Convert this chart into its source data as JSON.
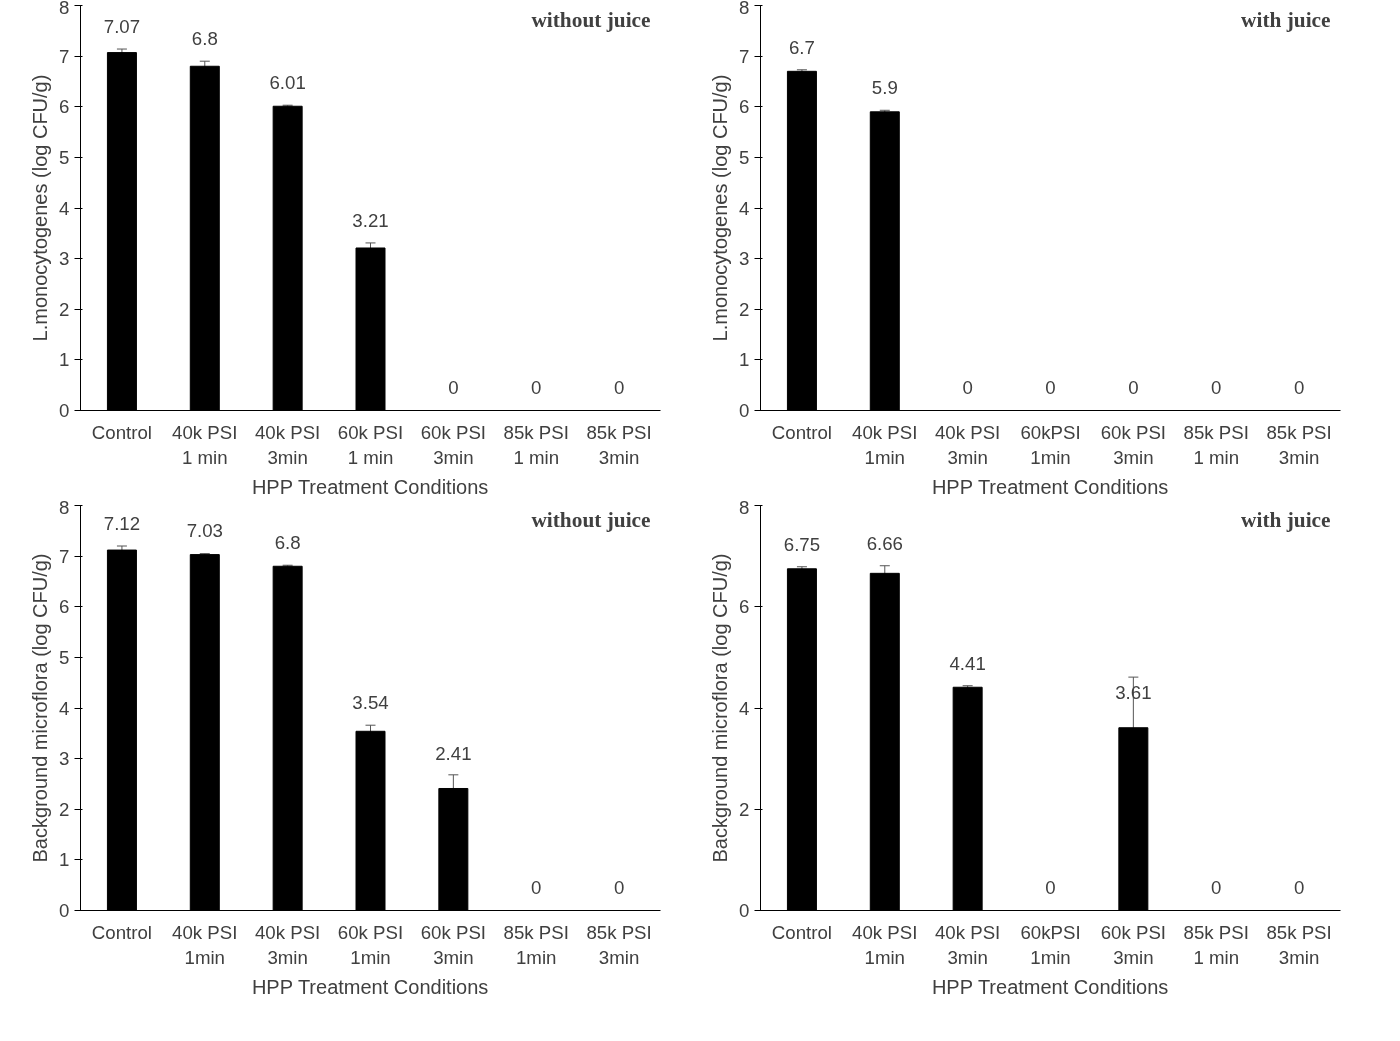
{
  "chart_data": [
    {
      "type": "bar",
      "title": "without juice",
      "xlabel": "HPP Treatment Conditions",
      "ylabel": "L.monocytogenes (log CFU/g)",
      "categories": [
        "Control",
        "40k PSI\n1 min",
        "40k PSI\n3min",
        "60k PSI\n1 min",
        "60k PSI\n3min",
        "85k PSI\n1 min",
        "85k PSI\n3min"
      ],
      "values": [
        7.07,
        6.8,
        6.01,
        3.21,
        0,
        0,
        0
      ],
      "errors": [
        0.07,
        0.1,
        0.02,
        0.1,
        null,
        null,
        null
      ],
      "color": "#000000",
      "ylim": [
        0,
        8
      ],
      "yticks": [
        0,
        1,
        2,
        3,
        4,
        5,
        6,
        7,
        8
      ],
      "data_labels": true,
      "grid": false
    },
    {
      "type": "bar",
      "title": "with juice",
      "xlabel": "HPP Treatment Conditions",
      "ylabel": "L.monocytogenes (log CFU/g)",
      "categories": [
        "Control",
        "40k PSI\n1min",
        "40k PSI\n3min",
        "60kPSI\n1min",
        "60k PSI\n3min",
        "85k PSI\n1 min",
        "85k PSI\n3min"
      ],
      "values": [
        6.7,
        5.9,
        0,
        0,
        0,
        0,
        0
      ],
      "errors": [
        0.03,
        0.03,
        null,
        null,
        null,
        null,
        null
      ],
      "color": "#000000",
      "ylim": [
        0,
        8
      ],
      "yticks": [
        0,
        1,
        2,
        3,
        4,
        5,
        6,
        7,
        8
      ],
      "data_labels": true,
      "grid": false
    },
    {
      "type": "bar",
      "title": "without juice",
      "xlabel": "HPP Treatment Conditions",
      "ylabel": "Background microflora (log CFU/g)",
      "categories": [
        "Control",
        "40k PSI\n1min",
        "40k PSI\n3min",
        "60k PSI\n1min",
        "60k PSI\n3min",
        "85k PSI\n1min",
        "85k PSI\n3min"
      ],
      "values": [
        7.12,
        7.03,
        6.8,
        3.54,
        2.41,
        0,
        0
      ],
      "errors": [
        0.08,
        0.02,
        0.02,
        0.12,
        0.27,
        null,
        null
      ],
      "color": "#000000",
      "ylim": [
        0,
        8
      ],
      "yticks": [
        0,
        1,
        2,
        3,
        4,
        5,
        6,
        7,
        8
      ],
      "data_labels": true,
      "grid": false
    },
    {
      "type": "bar",
      "title": "with juice",
      "xlabel": "HPP Treatment Conditions",
      "ylabel": "Background microflora (log CFU/g)",
      "categories": [
        "Control",
        "40k PSI\n1min",
        "40k PSI\n3min",
        "60kPSI\n1min",
        "60k PSI\n3min",
        "85k PSI\n1 min",
        "85k PSI\n3min"
      ],
      "values": [
        6.75,
        6.66,
        4.41,
        0,
        3.61,
        0,
        0
      ],
      "errors": [
        0.04,
        0.15,
        0.03,
        null,
        1.0,
        null,
        null
      ],
      "color": "#000000",
      "ylim": [
        0,
        8
      ],
      "yticks": [
        0,
        2,
        4,
        6,
        8
      ],
      "data_labels": true,
      "grid": false
    }
  ]
}
